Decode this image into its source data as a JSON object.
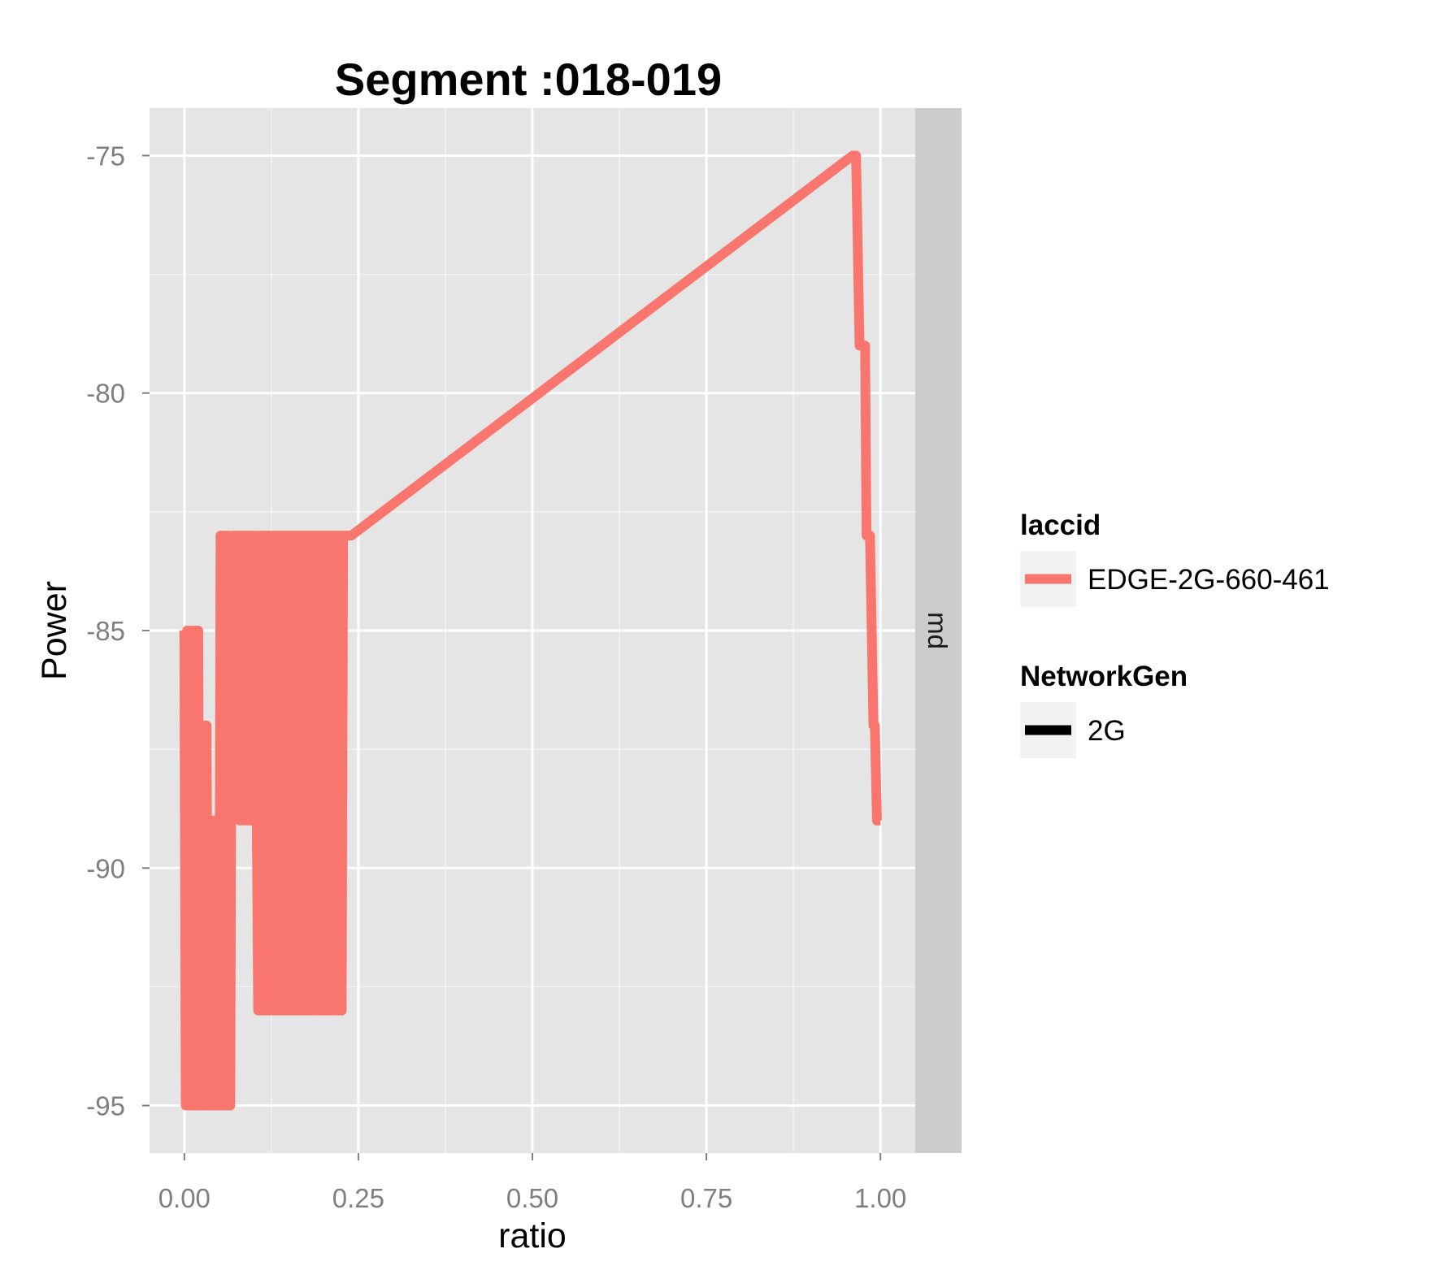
{
  "chart_data": {
    "type": "line",
    "title": "Segment :018-019",
    "xlabel": "ratio",
    "ylabel": "Power",
    "xlim": [
      -0.05,
      1.05
    ],
    "ylim": [
      -96,
      -74
    ],
    "x_ticks": [
      0.0,
      0.25,
      0.5,
      0.75,
      1.0
    ],
    "x_tick_labels": [
      "0.00",
      "0.25",
      "0.50",
      "0.75",
      "1.00"
    ],
    "y_ticks": [
      -75,
      -80,
      -85,
      -90,
      -95
    ],
    "y_tick_labels": [
      "-75",
      "-80",
      "-85",
      "-90",
      "-95"
    ],
    "grid": true,
    "facet_strip": "md",
    "legend_position": "right",
    "colors": {
      "panel": "#e5e5e5",
      "strip": "#cccccc",
      "grid": "#ffffff",
      "series": "#f8766d",
      "legend_key_bg": "#f2f2f2"
    },
    "legends": [
      {
        "title": "laccid",
        "entries": [
          {
            "label": "EDGE-2G-660-461",
            "color": "#f8766d"
          }
        ]
      },
      {
        "title": "NetworkGen",
        "entries": [
          {
            "label": "2G",
            "color": "#000000"
          }
        ]
      }
    ],
    "series": [
      {
        "name": "EDGE-2G-660-461",
        "color": "#f8766d",
        "x": [
          0.0,
          0.002,
          0.004,
          0.006,
          0.008,
          0.01,
          0.012,
          0.014,
          0.016,
          0.018,
          0.02,
          0.022,
          0.024,
          0.026,
          0.028,
          0.03,
          0.032,
          0.034,
          0.036,
          0.038,
          0.04,
          0.042,
          0.044,
          0.046,
          0.048,
          0.05,
          0.052,
          0.054,
          0.056,
          0.058,
          0.06,
          0.062,
          0.064,
          0.066,
          0.068,
          0.07,
          0.072,
          0.074,
          0.076,
          0.078,
          0.08,
          0.082,
          0.084,
          0.086,
          0.088,
          0.09,
          0.092,
          0.094,
          0.096,
          0.098,
          0.1,
          0.102,
          0.104,
          0.106,
          0.108,
          0.11,
          0.112,
          0.114,
          0.116,
          0.118,
          0.12,
          0.122,
          0.124,
          0.126,
          0.128,
          0.13,
          0.132,
          0.134,
          0.136,
          0.138,
          0.14,
          0.142,
          0.144,
          0.146,
          0.148,
          0.15,
          0.152,
          0.154,
          0.156,
          0.158,
          0.16,
          0.162,
          0.164,
          0.166,
          0.168,
          0.17,
          0.172,
          0.174,
          0.176,
          0.178,
          0.18,
          0.182,
          0.184,
          0.186,
          0.188,
          0.19,
          0.192,
          0.194,
          0.196,
          0.198,
          0.2,
          0.202,
          0.204,
          0.206,
          0.208,
          0.21,
          0.212,
          0.214,
          0.216,
          0.218,
          0.22,
          0.222,
          0.224,
          0.226,
          0.228,
          0.23,
          0.24,
          0.96,
          0.965,
          0.97,
          0.972,
          0.978,
          0.98,
          0.982,
          0.985,
          0.99,
          0.992,
          0.995,
          0.997,
          1.0
        ],
        "y": [
          -85,
          -95,
          -85,
          -95,
          -85,
          -95,
          -85,
          -95,
          -85,
          -95,
          -85,
          -95,
          -87,
          -95,
          -87,
          -95,
          -87,
          -95,
          -89,
          -95,
          -89,
          -95,
          -89,
          -95,
          -89,
          -95,
          -83,
          -95,
          -83,
          -95,
          -83,
          -95,
          -83,
          -95,
          -85,
          -83,
          -85,
          -83,
          -85,
          -83,
          -89,
          -83,
          -89,
          -83,
          -89,
          -83,
          -89,
          -83,
          -89,
          -83,
          -89,
          -83,
          -89,
          -93,
          -83,
          -93,
          -83,
          -93,
          -83,
          -93,
          -83,
          -93,
          -83,
          -93,
          -83,
          -93,
          -83,
          -93,
          -83,
          -93,
          -83,
          -93,
          -83,
          -93,
          -83,
          -93,
          -83,
          -93,
          -83,
          -93,
          -83,
          -93,
          -83,
          -93,
          -83,
          -93,
          -83,
          -93,
          -83,
          -93,
          -83,
          -93,
          -83,
          -93,
          -83,
          -93,
          -83,
          -93,
          -83,
          -93,
          -83,
          -93,
          -83,
          -93,
          -83,
          -93,
          -83,
          -93,
          -83,
          -93,
          -83,
          -93,
          -83,
          -93,
          -83,
          -83,
          -83,
          -75,
          -75,
          -79,
          -79,
          -79,
          -83,
          -83,
          -83,
          -87,
          -87,
          -89,
          -89,
          -89
        ]
      }
    ]
  }
}
